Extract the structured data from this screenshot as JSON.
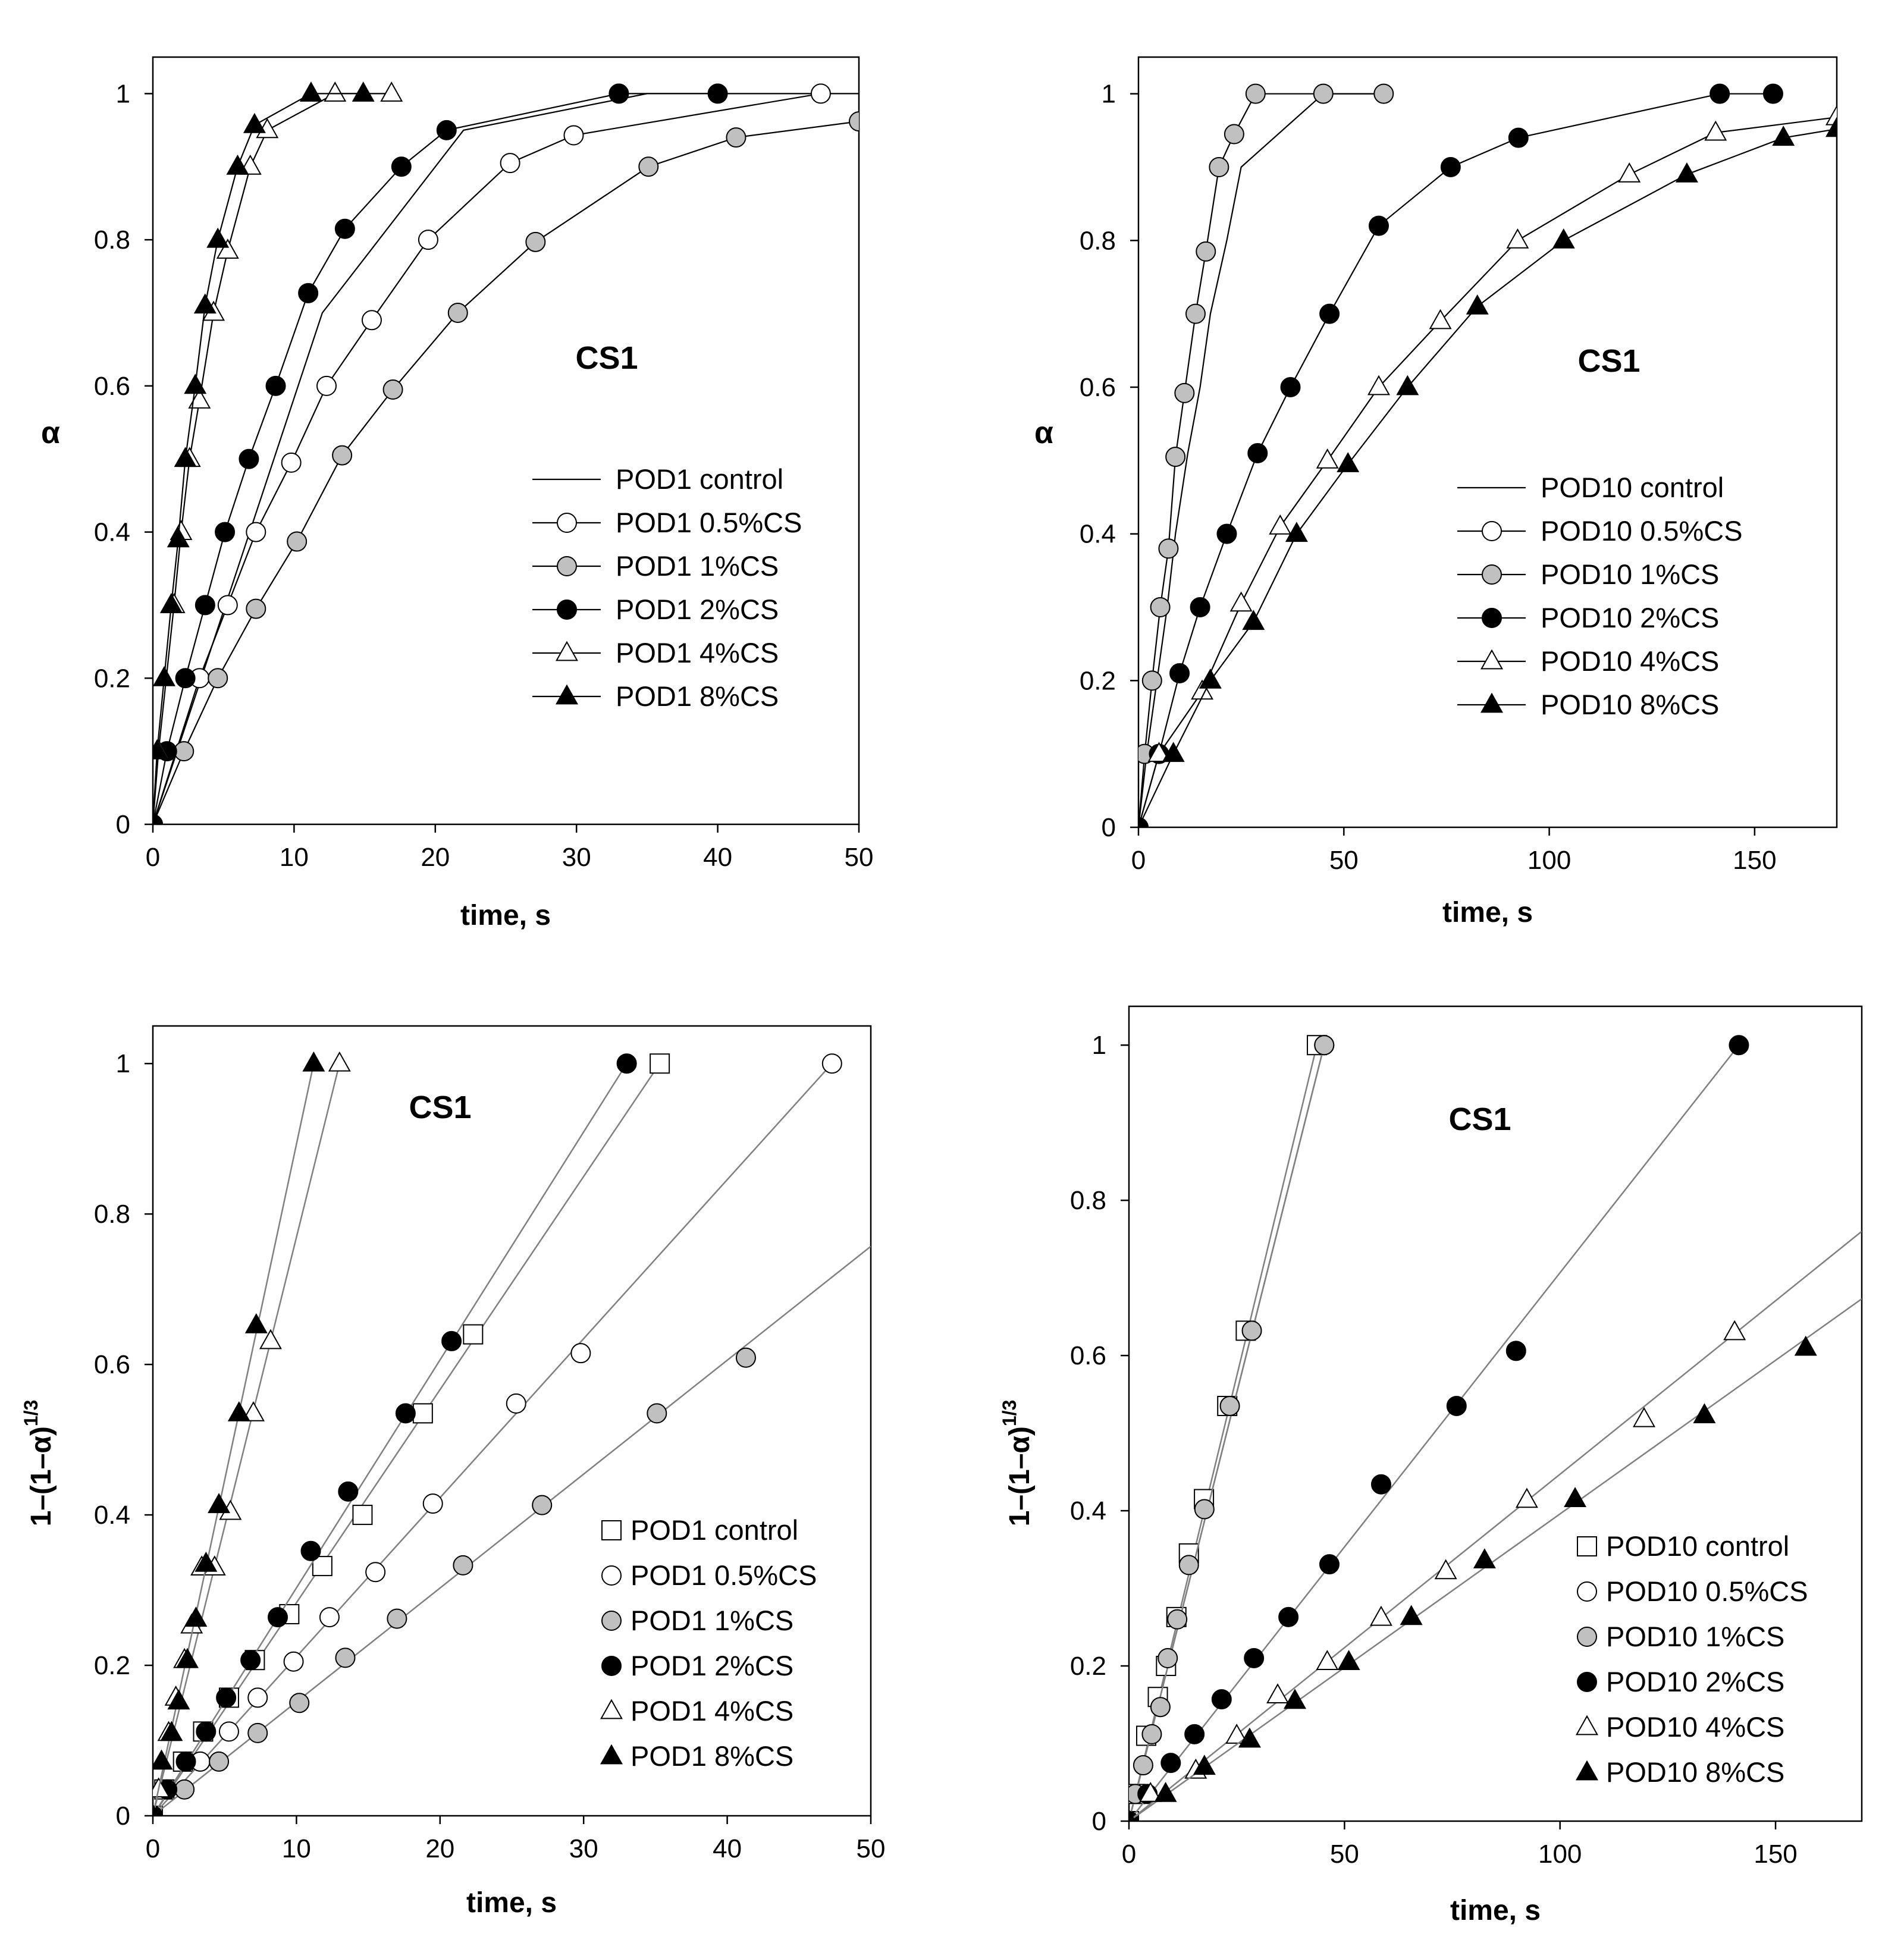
{
  "chart_data": [
    {
      "type": "line",
      "title": "CS1",
      "xlabel": "time, s",
      "ylabel": "α",
      "xlim": [
        0,
        50
      ],
      "ylim": [
        0,
        1.05
      ],
      "xticks": [
        0,
        10,
        20,
        30,
        40,
        50
      ],
      "yticks": [
        0,
        0.2,
        0.4,
        0.6,
        0.8,
        1
      ],
      "xtick_labels": [
        "0",
        "10",
        "20",
        "30",
        "40",
        "50"
      ],
      "ytick_labels": [
        "0",
        "0.2",
        "0.4",
        "0.6",
        "0.8",
        "1"
      ],
      "legend_location": "center-right",
      "series": [
        {
          "name": "POD1 control",
          "marker": "none",
          "x": [
            0,
            12,
            22,
            35,
            50
          ],
          "y": [
            0,
            0.7,
            0.95,
            1,
            1
          ]
        },
        {
          "name": "POD1 0.5%CS",
          "marker": "circle-open",
          "x": [
            0,
            3.3,
            5.3,
            7.3,
            9.8,
            12.3,
            15.5,
            19.5,
            25.3,
            29.8,
            47.3
          ],
          "y": [
            0,
            0.2,
            0.3,
            0.4,
            0.495,
            0.6,
            0.69,
            0.8,
            0.905,
            0.943,
            1
          ]
        },
        {
          "name": "POD1 1%CS",
          "marker": "circle-gray",
          "x": [
            0,
            2.2,
            4.6,
            7.3,
            10.2,
            13.4,
            17,
            21.6,
            27.1,
            35.1,
            41.3,
            50
          ],
          "y": [
            0,
            0.1,
            0.2,
            0.295,
            0.387,
            0.505,
            0.595,
            0.7,
            0.797,
            0.9,
            0.94,
            0.962
          ]
        },
        {
          "name": "POD1 2%CS",
          "marker": "circle-filled",
          "x": [
            0,
            1,
            2.3,
            3.7,
            5.1,
            6.8,
            8.7,
            11,
            13.6,
            17.6,
            20.8,
            33,
            40
          ],
          "y": [
            0,
            0.1,
            0.2,
            0.3,
            0.4,
            0.5,
            0.6,
            0.727,
            0.815,
            0.9,
            0.95,
            1,
            1
          ]
        },
        {
          "name": "POD1 4%CS",
          "marker": "triangle-open",
          "x": [
            0,
            0.4,
            1.5,
            2,
            2.6,
            3.3,
            4.3,
            5.3,
            6.9,
            8.1,
            12.9,
            16.9
          ],
          "y": [
            0,
            0.1,
            0.3,
            0.4,
            0.5,
            0.58,
            0.7,
            0.785,
            0.9,
            0.95,
            1,
            1
          ]
        },
        {
          "name": "POD1 8%CS",
          "marker": "triangle-filled",
          "x": [
            0,
            0.3,
            0.8,
            1.3,
            1.8,
            2.3,
            3,
            3.7,
            4.6,
            6,
            7.2,
            11.2,
            14.9
          ],
          "y": [
            0,
            0.1,
            0.2,
            0.3,
            0.39,
            0.5,
            0.6,
            0.71,
            0.8,
            0.9,
            0.957,
            1,
            1
          ]
        }
      ]
    },
    {
      "type": "line",
      "title": "CS1",
      "xlabel": "time, s",
      "ylabel": "α",
      "xlim": [
        0,
        170
      ],
      "ylim": [
        0,
        1.05
      ],
      "xticks": [
        0,
        50,
        100,
        150
      ],
      "yticks": [
        0,
        0.2,
        0.4,
        0.6,
        0.8,
        1
      ],
      "xtick_labels": [
        "0",
        "50",
        "100",
        "150"
      ],
      "ytick_labels": [
        "0",
        "0.2",
        "0.4",
        "0.6",
        "0.8",
        "1"
      ],
      "legend_location": "center-right",
      "series": [
        {
          "name": "POD10 control",
          "marker": "none",
          "x": [
            0,
            2,
            4.5,
            7,
            9,
            12,
            15,
            17.5,
            21.5,
            25,
            45,
            60
          ],
          "y": [
            0,
            0.1,
            0.2,
            0.3,
            0.4,
            0.51,
            0.6,
            0.7,
            0.8,
            0.9,
            1,
            1
          ]
        },
        {
          "name": "POD10 0.5%CS",
          "marker": "circle-open",
          "x": [],
          "y": []
        },
        {
          "name": "POD10 1%CS",
          "marker": "circle-gray",
          "x": [
            0,
            1.5,
            3.3,
            5.3,
            7.3,
            9,
            11.2,
            13.9,
            16.4,
            19.6,
            23.3,
            28.5,
            45,
            59.7
          ],
          "y": [
            0,
            0.1,
            0.2,
            0.3,
            0.38,
            0.505,
            0.592,
            0.7,
            0.785,
            0.9,
            0.945,
            1,
            1,
            1
          ]
        },
        {
          "name": "POD10 2%CS",
          "marker": "circle-filled",
          "x": [
            0,
            5,
            10,
            15,
            21.5,
            29,
            37,
            46.5,
            58.5,
            76,
            92.5,
            141.5,
            154.5
          ],
          "y": [
            0,
            0.1,
            0.21,
            0.3,
            0.4,
            0.51,
            0.6,
            0.7,
            0.82,
            0.9,
            0.94,
            1,
            1
          ]
        },
        {
          "name": "POD10 4%CS",
          "marker": "triangle-open",
          "x": [
            0,
            5,
            15.5,
            25,
            34.5,
            46,
            58.5,
            73.5,
            92.3,
            119.5,
            140.5,
            170
          ],
          "y": [
            0,
            0.1,
            0.185,
            0.305,
            0.41,
            0.5,
            0.6,
            0.69,
            0.8,
            0.89,
            0.947,
            0.968
          ]
        },
        {
          "name": "POD10 8%CS",
          "marker": "triangle-filled",
          "x": [
            0,
            8.5,
            17.5,
            28,
            38.5,
            51,
            65.5,
            82.5,
            103.5,
            133.5,
            157,
            170
          ],
          "y": [
            0,
            0.1,
            0.2,
            0.28,
            0.4,
            0.495,
            0.6,
            0.71,
            0.8,
            0.89,
            0.94,
            0.952
          ]
        }
      ]
    },
    {
      "type": "scatter",
      "title": "CS1",
      "xlabel": "time, s",
      "ylabel": "1–(1–α)",
      "ylabel_sup": "1/3",
      "xlim": [
        0,
        50
      ],
      "ylim": [
        0,
        1.05
      ],
      "xticks": [
        0,
        10,
        20,
        30,
        40,
        50
      ],
      "yticks": [
        0,
        0.2,
        0.4,
        0.6,
        0.8,
        1
      ],
      "xtick_labels": [
        "0",
        "10",
        "20",
        "30",
        "40",
        "50"
      ],
      "ytick_labels": [
        "0",
        "0.2",
        "0.4",
        "0.6",
        "0.8",
        "1"
      ],
      "legend_location": "bottom-right",
      "series": [
        {
          "name": "POD1 control",
          "marker": "square-open",
          "x": [
            0,
            0.8,
            2.1,
            3.5,
            5.3,
            7.1,
            9.5,
            11.8,
            14.6,
            18.8,
            22.3,
            35.3
          ],
          "y": [
            0,
            0.035,
            0.072,
            0.112,
            0.157,
            0.207,
            0.268,
            0.332,
            0.4,
            0.535,
            0.64,
            1
          ],
          "fit": [
            [
              0,
              0
            ],
            [
              35.3,
              1
            ]
          ]
        },
        {
          "name": "POD1 0.5%CS",
          "marker": "circle-open",
          "x": [
            0,
            3.3,
            5.3,
            7.3,
            9.8,
            12.3,
            15.5,
            19.5,
            25.3,
            29.8,
            47.3
          ],
          "y": [
            0,
            0.072,
            0.112,
            0.157,
            0.205,
            0.264,
            0.324,
            0.415,
            0.548,
            0.615,
            1
          ],
          "fit": [
            [
              0,
              0
            ],
            [
              47.3,
              1
            ]
          ]
        },
        {
          "name": "POD1 1%CS",
          "marker": "circle-gray",
          "x": [
            0,
            2.2,
            4.6,
            7.3,
            10.2,
            13.4,
            17,
            21.6,
            27.1,
            35.1,
            41.3
          ],
          "y": [
            0,
            0.035,
            0.072,
            0.11,
            0.15,
            0.21,
            0.262,
            0.333,
            0.413,
            0.535,
            0.609
          ],
          "fit": [
            [
              0,
              0
            ],
            [
              50,
              0.757
            ]
          ]
        },
        {
          "name": "POD1 2%CS",
          "marker": "circle-filled",
          "x": [
            0,
            1,
            2.3,
            3.7,
            5.1,
            6.8,
            8.7,
            11,
            13.6,
            17.6,
            20.8,
            33
          ],
          "y": [
            0,
            0.035,
            0.072,
            0.112,
            0.157,
            0.207,
            0.264,
            0.352,
            0.431,
            0.535,
            0.631,
            1
          ],
          "fit": [
            [
              0,
              0
            ],
            [
              33,
              1
            ]
          ]
        },
        {
          "name": "POD1 4%CS",
          "marker": "triangle-open",
          "x": [
            0,
            0.4,
            1.1,
            1.6,
            2.2,
            2.7,
            3.4,
            4.3,
            5.4,
            7,
            8.2,
            13
          ],
          "y": [
            0,
            0.035,
            0.11,
            0.157,
            0.207,
            0.253,
            0.33,
            0.33,
            0.404,
            0.535,
            0.631,
            1
          ],
          "fit": [
            [
              0,
              0
            ],
            [
              13,
              1
            ]
          ]
        },
        {
          "name": "POD1 8%CS",
          "marker": "triangle-filled",
          "x": [
            0,
            0.6,
            1.3,
            1.8,
            2.4,
            3,
            3.7,
            4.6,
            6,
            7.2,
            11.2
          ],
          "y": [
            0,
            0.072,
            0.11,
            0.152,
            0.207,
            0.262,
            0.335,
            0.413,
            0.535,
            0.652,
            1
          ],
          "fit": [
            [
              0,
              0
            ],
            [
              11.2,
              1
            ]
          ]
        }
      ]
    },
    {
      "type": "scatter",
      "title": "CS1",
      "xlabel": "time, s",
      "ylabel": "1–(1–α)",
      "ylabel_sup": "1/3",
      "xlim": [
        0,
        170
      ],
      "ylim": [
        0,
        1.05
      ],
      "xticks": [
        0,
        50,
        100,
        150
      ],
      "yticks": [
        0,
        0.2,
        0.4,
        0.6,
        0.8,
        1
      ],
      "xtick_labels": [
        "0",
        "50",
        "100",
        "150"
      ],
      "ytick_labels": [
        "0",
        "0.2",
        "0.4",
        "0.6",
        "0.8",
        "1"
      ],
      "legend_location": "bottom-right",
      "series": [
        {
          "name": "POD10 control",
          "marker": "square-open",
          "x": [
            0,
            1.5,
            4,
            6.7,
            8.6,
            11,
            13.9,
            17.4,
            22.8,
            27.1,
            43.6
          ],
          "y": [
            0,
            0.035,
            0.11,
            0.16,
            0.2,
            0.263,
            0.345,
            0.415,
            0.535,
            0.632,
            1
          ],
          "fit": [
            [
              0,
              0
            ],
            [
              43.6,
              1
            ]
          ]
        },
        {
          "name": "POD10 0.5%CS",
          "marker": "circle-open",
          "x": [
            0,
            45.3
          ],
          "y": [
            0,
            1
          ],
          "fit": [
            [
              0,
              0
            ],
            [
              45.3,
              1
            ]
          ]
        },
        {
          "name": "POD10 1%CS",
          "marker": "circle-gray",
          "x": [
            0,
            1.5,
            3.3,
            5.3,
            7.3,
            9,
            11.2,
            13.9,
            17.5,
            23.4,
            28.5,
            45.3
          ],
          "y": [
            0,
            0.035,
            0.072,
            0.112,
            0.147,
            0.21,
            0.26,
            0.33,
            0.402,
            0.535,
            0.632,
            1
          ],
          "fit": [
            [
              0,
              0
            ],
            [
              45.3,
              1
            ]
          ]
        },
        {
          "name": "POD10 2%CS",
          "marker": "circle-filled",
          "x": [
            0,
            4.3,
            9.7,
            15.2,
            21.5,
            29,
            37,
            46.5,
            58.5,
            76,
            89.8,
            141.5
          ],
          "y": [
            0,
            0.035,
            0.075,
            0.112,
            0.157,
            0.21,
            0.263,
            0.331,
            0.434,
            0.535,
            0.606,
            1
          ],
          "fit": [
            [
              0,
              0
            ],
            [
              141.5,
              1
            ]
          ]
        },
        {
          "name": "POD10 4%CS",
          "marker": "triangle-open",
          "x": [
            0,
            5,
            15.5,
            25,
            34.5,
            46,
            58.5,
            73.5,
            92.3,
            119.5,
            140.5
          ],
          "y": [
            0,
            0.035,
            0.065,
            0.11,
            0.162,
            0.205,
            0.262,
            0.322,
            0.414,
            0.518,
            0.63
          ],
          "fit": [
            [
              0,
              0
            ],
            [
              170,
              0.76
            ]
          ]
        },
        {
          "name": "POD10 8%CS",
          "marker": "triangle-filled",
          "x": [
            0,
            8.5,
            17.5,
            28,
            38.5,
            51,
            65.5,
            82.5,
            103.5,
            133.5,
            157
          ],
          "y": [
            0,
            0.035,
            0.07,
            0.105,
            0.155,
            0.205,
            0.263,
            0.336,
            0.415,
            0.523,
            0.61
          ],
          "fit": [
            [
              0,
              0
            ],
            [
              170,
              0.673
            ]
          ]
        }
      ]
    }
  ]
}
